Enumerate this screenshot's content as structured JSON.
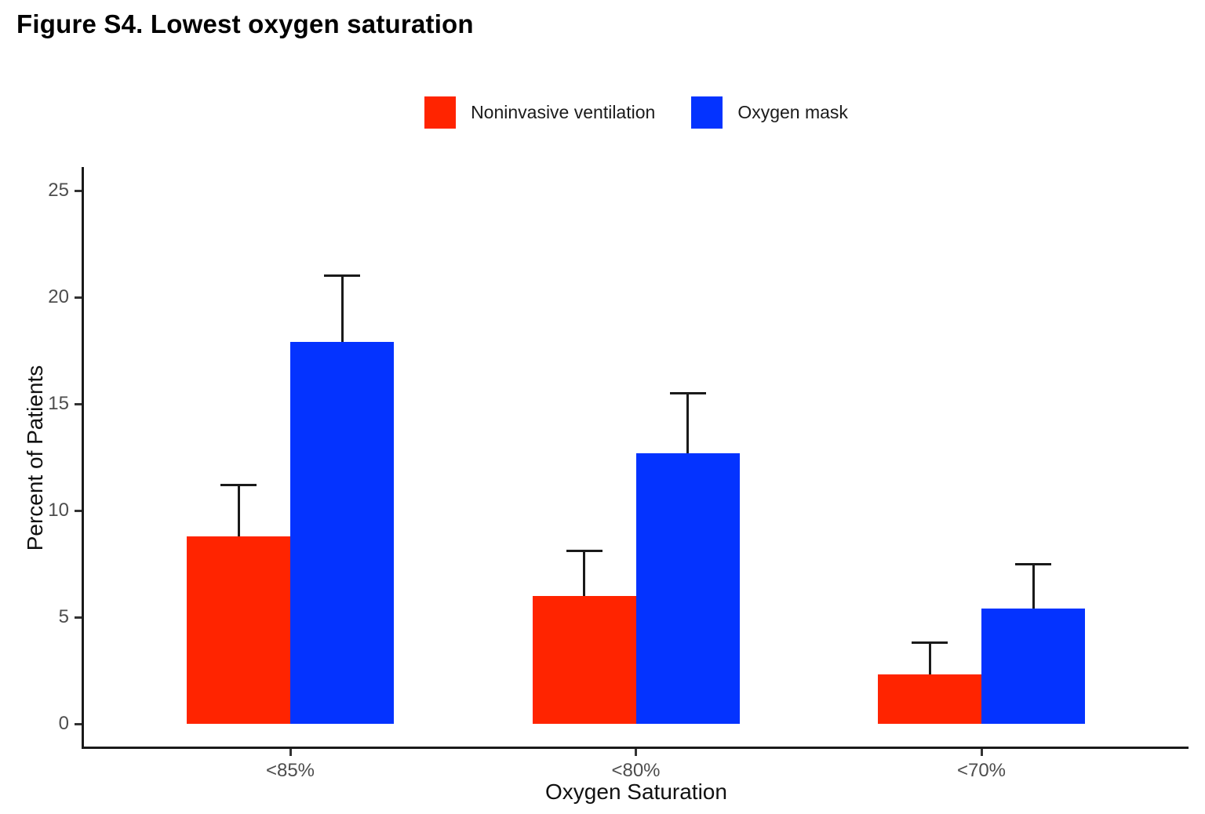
{
  "figure": {
    "title": "Figure S4. Lowest oxygen saturation"
  },
  "chart_data": {
    "type": "bar",
    "title": "Figure S4. Lowest oxygen saturation",
    "categories": [
      "<85%",
      "<80%",
      "<70%"
    ],
    "series": [
      {
        "name": "Noninvasive ventilation",
        "color": "#FF2400",
        "values": [
          8.8,
          6.0,
          2.3
        ],
        "error_upper": [
          11.2,
          8.1,
          3.8
        ]
      },
      {
        "name": "Oxygen mask",
        "color": "#0433FF",
        "values": [
          17.9,
          12.7,
          5.4
        ],
        "error_upper": [
          21.0,
          15.5,
          7.5
        ]
      }
    ],
    "xlabel": "Oxygen Saturation",
    "ylabel": "Percent of Patients",
    "ylim": [
      0,
      26
    ],
    "yticks": [
      0,
      5,
      10,
      15,
      20,
      25
    ],
    "grid": false,
    "legend_position": "top-center",
    "error_bars": "upper-only",
    "bar_grouping": "dodged"
  }
}
